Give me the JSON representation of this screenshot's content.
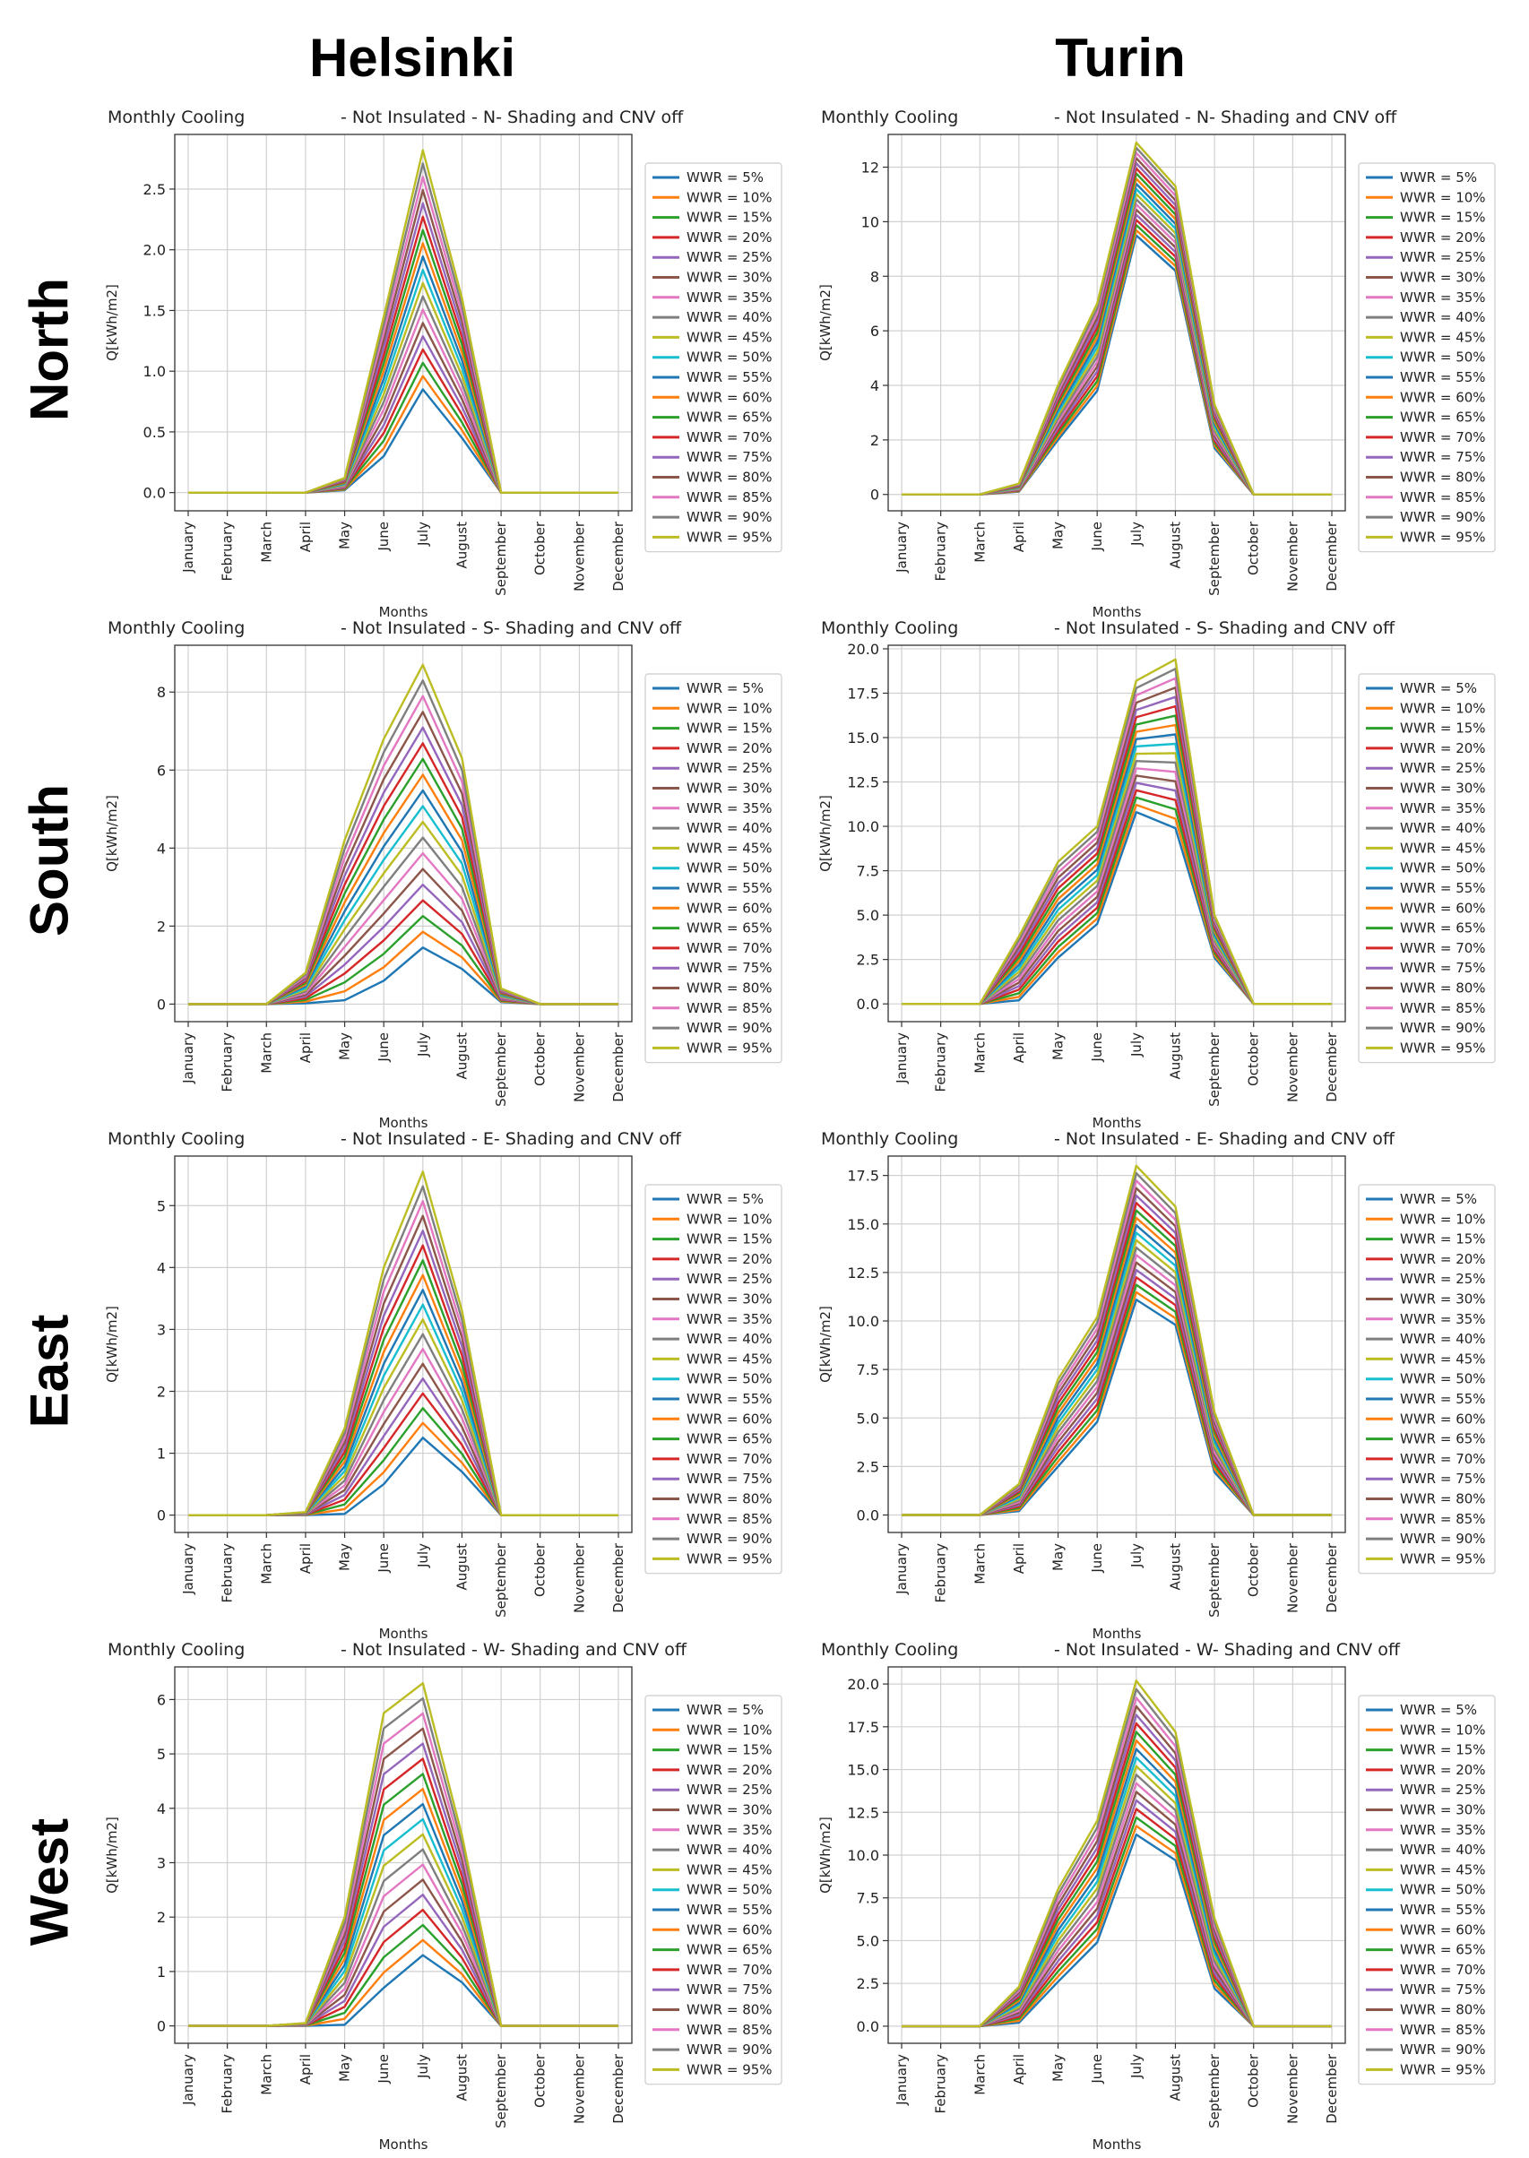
{
  "column_headers": [
    "Helsinki",
    "Turin"
  ],
  "row_headers": [
    "North",
    "South",
    "East",
    "West"
  ],
  "chart_data": [
    {
      "type": "line",
      "city": "Helsinki",
      "orientation": "North",
      "title_left": "Monthly Cooling",
      "title_right": "- Not Insulated - N- Shading and CNV off",
      "xlabel": "Months",
      "ylabel": "Q[kWh/m2]",
      "ylim": [
        -0.15,
        2.95
      ],
      "yticks": [
        "0.0",
        "0.5",
        "1.0",
        "1.5",
        "2.0",
        "2.5"
      ],
      "ytick_values": [
        0,
        0.5,
        1,
        1.5,
        2,
        2.5
      ],
      "low_profile": [
        0,
        0,
        0,
        0,
        0.02,
        0.3,
        0.85,
        0.45,
        0,
        0,
        0,
        0
      ],
      "high_profile": [
        0,
        0,
        0,
        0,
        0.12,
        1.45,
        2.82,
        1.6,
        0,
        0,
        0,
        0
      ]
    },
    {
      "type": "line",
      "city": "Turin",
      "orientation": "North",
      "title_left": "Monthly Cooling",
      "title_right": "- Not Insulated - N- Shading and CNV off",
      "xlabel": "Months",
      "ylabel": "Q[kWh/m2]",
      "ylim": [
        -0.6,
        13.2
      ],
      "yticks": [
        "0",
        "2",
        "4",
        "6",
        "8",
        "10",
        "12"
      ],
      "ytick_values": [
        0,
        2,
        4,
        6,
        8,
        10,
        12
      ],
      "low_profile": [
        0,
        0,
        0,
        0.1,
        2,
        3.8,
        9.5,
        8.2,
        1.7,
        0,
        0,
        0
      ],
      "high_profile": [
        0,
        0,
        0,
        0.4,
        4,
        7,
        12.9,
        11.3,
        3.3,
        0,
        0,
        0
      ]
    },
    {
      "type": "line",
      "city": "Helsinki",
      "orientation": "South",
      "title_left": "Monthly Cooling",
      "title_right": "- Not Insulated - S- Shading and CNV off",
      "xlabel": "Months",
      "ylabel": "Q[kWh/m2]",
      "ylim": [
        -0.45,
        9.2
      ],
      "yticks": [
        "0",
        "2",
        "4",
        "6",
        "8"
      ],
      "ytick_values": [
        0,
        2,
        4,
        6,
        8
      ],
      "low_profile": [
        0,
        0,
        0,
        0.02,
        0.1,
        0.6,
        1.45,
        0.9,
        0.05,
        0,
        0,
        0
      ],
      "high_profile": [
        0,
        0,
        0,
        0.8,
        4.2,
        6.8,
        8.7,
        6.3,
        0.4,
        0,
        0,
        0
      ]
    },
    {
      "type": "line",
      "city": "Turin",
      "orientation": "South",
      "title_left": "Monthly Cooling",
      "title_right": "- Not Insulated - S- Shading and CNV off",
      "xlabel": "Months",
      "ylabel": "Q[kWh/m2]",
      "ylim": [
        -1,
        20.2
      ],
      "yticks": [
        "0.0",
        "2.5",
        "5.0",
        "7.5",
        "10.0",
        "12.5",
        "15.0",
        "17.5",
        "20.0"
      ],
      "ytick_values": [
        0,
        2.5,
        5,
        7.5,
        10,
        12.5,
        15,
        17.5,
        20
      ],
      "low_profile": [
        0,
        0,
        0,
        0.2,
        2.6,
        4.5,
        10.8,
        9.9,
        2.6,
        0,
        0,
        0
      ],
      "high_profile": [
        0,
        0,
        0,
        3.8,
        8,
        10,
        18.2,
        19.4,
        5,
        0,
        0,
        0
      ]
    },
    {
      "type": "line",
      "city": "Helsinki",
      "orientation": "East",
      "title_left": "Monthly Cooling",
      "title_right": "- Not Insulated - E- Shading and CNV off",
      "xlabel": "Months",
      "ylabel": "Q[kWh/m2]",
      "ylim": [
        -0.28,
        5.8
      ],
      "yticks": [
        "0",
        "1",
        "2",
        "3",
        "4",
        "5"
      ],
      "ytick_values": [
        0,
        1,
        2,
        3,
        4,
        5
      ],
      "low_profile": [
        0,
        0,
        0,
        0,
        0.02,
        0.5,
        1.25,
        0.7,
        0,
        0,
        0,
        0
      ],
      "high_profile": [
        0,
        0,
        0,
        0.05,
        1.4,
        4,
        5.55,
        3.3,
        0,
        0,
        0,
        0
      ]
    },
    {
      "type": "line",
      "city": "Turin",
      "orientation": "East",
      "title_left": "Monthly Cooling",
      "title_right": "- Not Insulated - E- Shading and CNV off",
      "xlabel": "Months",
      "ylabel": "Q[kWh/m2]",
      "ylim": [
        -0.9,
        18.5
      ],
      "yticks": [
        "0.0",
        "2.5",
        "5.0",
        "7.5",
        "10.0",
        "12.5",
        "15.0",
        "17.5"
      ],
      "ytick_values": [
        0,
        2.5,
        5,
        7.5,
        10,
        12.5,
        15,
        17.5
      ],
      "low_profile": [
        0,
        0,
        0,
        0.2,
        2.5,
        4.8,
        11.1,
        9.8,
        2.2,
        0,
        0,
        0
      ],
      "high_profile": [
        0,
        0,
        0,
        1.6,
        7,
        10.2,
        18,
        15.9,
        5.3,
        0,
        0,
        0
      ]
    },
    {
      "type": "line",
      "city": "Helsinki",
      "orientation": "West",
      "title_left": "Monthly Cooling",
      "title_right": "- Not Insulated - W- Shading and CNV off",
      "xlabel": "Months",
      "ylabel": "Q[kWh/m2]",
      "ylim": [
        -0.32,
        6.6
      ],
      "yticks": [
        "0",
        "1",
        "2",
        "3",
        "4",
        "5",
        "6"
      ],
      "ytick_values": [
        0,
        1,
        2,
        3,
        4,
        5,
        6
      ],
      "low_profile": [
        0,
        0,
        0,
        0,
        0.02,
        0.7,
        1.3,
        0.8,
        0,
        0,
        0,
        0
      ],
      "high_profile": [
        0,
        0,
        0,
        0.05,
        2,
        5.75,
        6.3,
        3.5,
        0,
        0,
        0,
        0
      ]
    },
    {
      "type": "line",
      "city": "Turin",
      "orientation": "West",
      "title_left": "Monthly Cooling",
      "title_right": "- Not Insulated - W- Shading and CNV off",
      "xlabel": "Months",
      "ylabel": "Q[kWh/m2]",
      "ylim": [
        -1,
        21
      ],
      "yticks": [
        "0.0",
        "2.5",
        "5.0",
        "7.5",
        "10.0",
        "12.5",
        "15.0",
        "17.5",
        "20.0"
      ],
      "ytick_values": [
        0,
        2.5,
        5,
        7.5,
        10,
        12.5,
        15,
        17.5,
        20
      ],
      "low_profile": [
        0,
        0,
        0,
        0.2,
        2.6,
        4.9,
        11.2,
        9.7,
        2.2,
        0,
        0,
        0
      ],
      "high_profile": [
        0,
        0,
        0,
        2.3,
        8,
        12,
        20.2,
        17.2,
        6.3,
        0,
        0,
        0
      ]
    }
  ],
  "categories": [
    "January",
    "February",
    "March",
    "April",
    "May",
    "June",
    "July",
    "August",
    "September",
    "October",
    "November",
    "December"
  ],
  "series_names": [
    "WWR = 5%",
    "WWR = 10%",
    "WWR = 15%",
    "WWR = 20%",
    "WWR = 25%",
    "WWR = 30%",
    "WWR = 35%",
    "WWR = 40%",
    "WWR = 45%",
    "WWR = 50%",
    "WWR = 55%",
    "WWR = 60%",
    "WWR = 65%",
    "WWR = 70%",
    "WWR = 75%",
    "WWR = 80%",
    "WWR = 85%",
    "WWR = 90%",
    "WWR = 95%"
  ],
  "series_colors": [
    "#1f77b4",
    "#ff7f0e",
    "#2ca02c",
    "#d62728",
    "#9467bd",
    "#8c564b",
    "#e377c2",
    "#7f7f7f",
    "#bcbd22",
    "#17becf",
    "#1f77b4",
    "#ff7f0e",
    "#2ca02c",
    "#d62728",
    "#9467bd",
    "#8c564b",
    "#e377c2",
    "#7f7f7f",
    "#bcbd22"
  ]
}
